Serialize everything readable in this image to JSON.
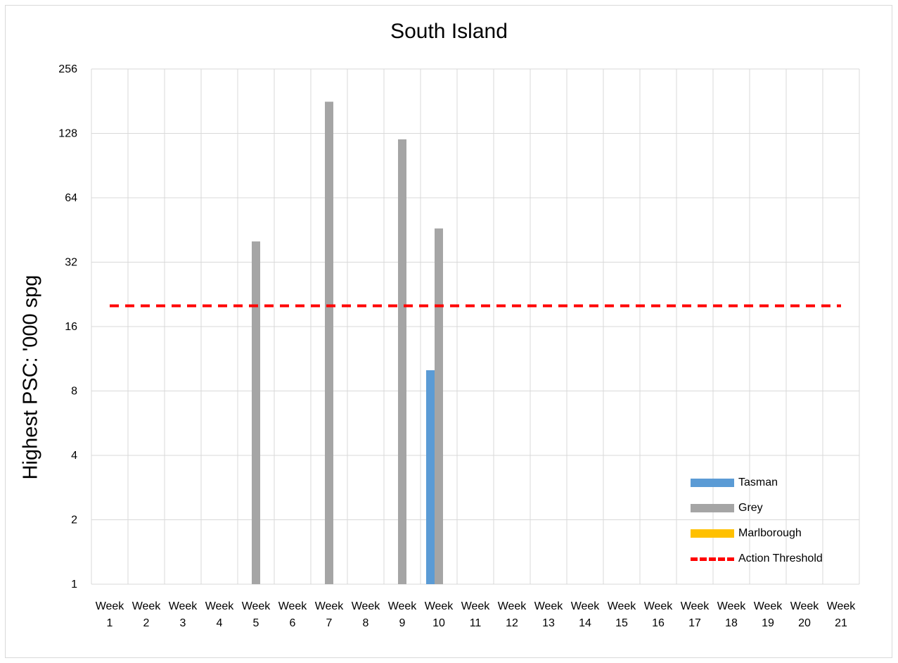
{
  "chart_data": {
    "type": "bar",
    "title": "South Island",
    "xlabel": "",
    "ylabel": "Highest PSC: '000 spg",
    "yscale": "log2",
    "ylim": [
      1,
      256
    ],
    "yticks": [
      1,
      2,
      4,
      8,
      16,
      32,
      64,
      128,
      256
    ],
    "grid": true,
    "legend_position": "bottom-right",
    "categories": [
      "Week 1",
      "Week 2",
      "Week 3",
      "Week 4",
      "Week 5",
      "Week 6",
      "Week 7",
      "Week 8",
      "Week 9",
      "Week 10",
      "Week 11",
      "Week 12",
      "Week 13",
      "Week 14",
      "Week 15",
      "Week 16",
      "Week 17",
      "Week 18",
      "Week 19",
      "Week 20",
      "Week 21"
    ],
    "category_lines": [
      [
        "Week",
        "1"
      ],
      [
        "Week",
        "2"
      ],
      [
        "Week",
        "3"
      ],
      [
        "Week",
        "4"
      ],
      [
        "Week",
        "5"
      ],
      [
        "Week",
        "6"
      ],
      [
        "Week",
        "7"
      ],
      [
        "Week",
        "8"
      ],
      [
        "Week",
        "9"
      ],
      [
        "Week",
        "10"
      ],
      [
        "Week",
        "11"
      ],
      [
        "Week",
        "12"
      ],
      [
        "Week",
        "13"
      ],
      [
        "Week",
        "14"
      ],
      [
        "Week",
        "15"
      ],
      [
        "Week",
        "16"
      ],
      [
        "Week",
        "17"
      ],
      [
        "Week",
        "18"
      ],
      [
        "Week",
        "19"
      ],
      [
        "Week",
        "20"
      ],
      [
        "Week",
        "21"
      ]
    ],
    "series": [
      {
        "name": "Tasman",
        "color": "#5b9bd5",
        "values": [
          null,
          null,
          null,
          null,
          null,
          null,
          null,
          null,
          null,
          10,
          null,
          null,
          null,
          null,
          null,
          null,
          null,
          null,
          null,
          null,
          null
        ]
      },
      {
        "name": "Grey",
        "color": "#a5a5a5",
        "values": [
          null,
          null,
          null,
          null,
          40,
          null,
          180,
          null,
          120,
          46,
          null,
          null,
          null,
          null,
          null,
          null,
          null,
          null,
          null,
          null,
          null
        ]
      },
      {
        "name": "Marlborough",
        "color": "#ffc000",
        "values": [
          null,
          null,
          null,
          null,
          null,
          null,
          null,
          null,
          null,
          null,
          null,
          null,
          null,
          null,
          null,
          null,
          null,
          null,
          null,
          null,
          null
        ]
      }
    ],
    "threshold": {
      "name": "Action Threshold",
      "value": 20,
      "color": "#ff0000",
      "style": "dashed"
    }
  }
}
